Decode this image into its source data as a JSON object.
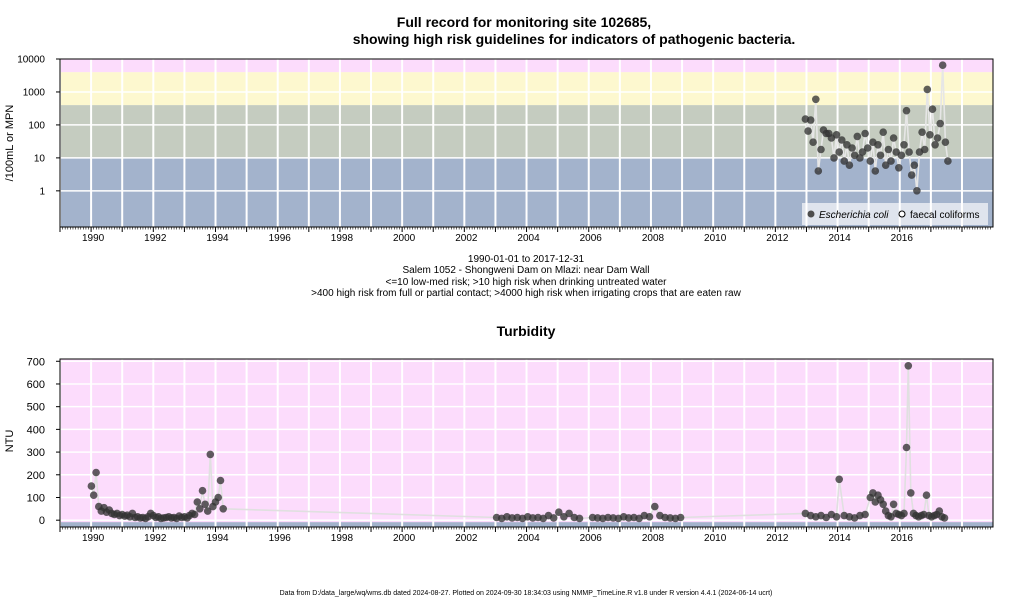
{
  "chart_data": [
    {
      "type": "scatter",
      "title_line1": "Full record for monitoring site 102685,",
      "title_line2": "showing high risk guidelines for indicators of pathogenic bacteria.",
      "ylabel": "/100mL or MPN",
      "y_scale": "log",
      "ylim": [
        0.08,
        10000
      ],
      "xlim": [
        "1989-01-01",
        "2018-12-31"
      ],
      "x_ticks": [
        "1990",
        "1992",
        "1994",
        "1996",
        "1998",
        "2000",
        "2002",
        "2004",
        "2006",
        "2008",
        "2010",
        "2012",
        "2014",
        "2016"
      ],
      "y_ticks": [
        "1",
        "10",
        "100",
        "1000",
        "10000"
      ],
      "grid": true,
      "bands": [
        {
          "from": 0.08,
          "to": 10,
          "color": "#a3b3cc"
        },
        {
          "from": 10,
          "to": 400,
          "color": "#c5ccc0"
        },
        {
          "from": 400,
          "to": 4000,
          "color": "#fdf8cf"
        },
        {
          "from": 4000,
          "to": 10000,
          "color": "#fcdcfc"
        }
      ],
      "caption": [
        "1990-01-01 to 2017-12-31",
        "Salem 1052 - Shongweni Dam on Mlazi: near Dam Wall",
        "<=10 low-med risk; >10 high risk when drinking untreated water",
        ">400 high risk from full or partial contact; >4000 high risk when irrigating crops that are eaten raw"
      ],
      "legend": {
        "position": "bottom-right",
        "items": [
          {
            "label": "Escherichia coli",
            "marker": "filled"
          },
          {
            "label": "faecal coliforms",
            "marker": "open"
          }
        ]
      },
      "series": [
        {
          "name": "Escherichia coli",
          "marker": "filled",
          "points": [
            [
              "2012-12-20",
              150
            ],
            [
              "2013-01-20",
              65
            ],
            [
              "2013-02-20",
              140
            ],
            [
              "2013-03-20",
              30
            ],
            [
              "2013-04-20",
              600
            ],
            [
              "2013-05-20",
              4
            ],
            [
              "2013-06-20",
              18
            ],
            [
              "2013-07-20",
              70
            ],
            [
              "2013-08-20",
              55
            ],
            [
              "2013-09-20",
              55
            ],
            [
              "2013-10-20",
              40
            ],
            [
              "2013-11-20",
              10
            ],
            [
              "2013-12-20",
              50
            ],
            [
              "2014-01-20",
              15
            ],
            [
              "2014-02-20",
              35
            ],
            [
              "2014-03-20",
              8
            ],
            [
              "2014-04-20",
              25
            ],
            [
              "2014-05-20",
              6
            ],
            [
              "2014-06-20",
              20
            ],
            [
              "2014-07-20",
              12
            ],
            [
              "2014-08-20",
              45
            ],
            [
              "2014-09-20",
              10
            ],
            [
              "2014-10-20",
              15
            ],
            [
              "2014-11-20",
              55
            ],
            [
              "2014-12-20",
              20
            ],
            [
              "2015-01-20",
              8
            ],
            [
              "2015-02-20",
              30
            ],
            [
              "2015-03-20",
              4
            ],
            [
              "2015-04-20",
              25
            ],
            [
              "2015-05-20",
              12
            ],
            [
              "2015-06-20",
              60
            ],
            [
              "2015-07-20",
              6
            ],
            [
              "2015-08-20",
              18
            ],
            [
              "2015-09-20",
              8
            ],
            [
              "2015-10-20",
              40
            ],
            [
              "2015-11-20",
              15
            ],
            [
              "2015-12-20",
              5
            ],
            [
              "2016-01-20",
              12
            ],
            [
              "2016-02-20",
              25
            ],
            [
              "2016-03-20",
              270
            ],
            [
              "2016-04-20",
              15
            ],
            [
              "2016-05-20",
              3
            ],
            [
              "2016-06-20",
              6
            ],
            [
              "2016-07-20",
              1
            ],
            [
              "2016-08-20",
              15
            ],
            [
              "2016-09-20",
              60
            ],
            [
              "2016-10-20",
              18
            ],
            [
              "2016-11-20",
              1200
            ],
            [
              "2016-12-20",
              50
            ],
            [
              "2017-01-20",
              300
            ],
            [
              "2017-02-20",
              25
            ],
            [
              "2017-03-20",
              40
            ],
            [
              "2017-04-20",
              110
            ],
            [
              "2017-05-20",
              6500
            ],
            [
              "2017-06-20",
              30
            ],
            [
              "2017-07-20",
              8
            ]
          ]
        }
      ]
    },
    {
      "type": "scatter",
      "title": "Turbidity",
      "ylabel": "NTU",
      "ylim": [
        -30,
        710
      ],
      "xlim": [
        "1989-01-01",
        "2018-12-31"
      ],
      "x_ticks": [
        "1990",
        "1992",
        "1994",
        "1996",
        "1998",
        "2000",
        "2002",
        "2004",
        "2006",
        "2008",
        "2010",
        "2012",
        "2014",
        "2016"
      ],
      "y_ticks": [
        "0",
        "100",
        "200",
        "300",
        "400",
        "500",
        "600",
        "700"
      ],
      "grid": true,
      "band_color": "#fcdcfc",
      "series": [
        {
          "name": "Turbidity",
          "marker": "filled",
          "points": [
            [
              "1990-01-05",
              150
            ],
            [
              "1990-02-01",
              110
            ],
            [
              "1990-03-01",
              210
            ],
            [
              "1990-04-01",
              60
            ],
            [
              "1990-05-01",
              40
            ],
            [
              "1990-06-01",
              55
            ],
            [
              "1990-07-01",
              35
            ],
            [
              "1990-08-01",
              45
            ],
            [
              "1990-09-01",
              30
            ],
            [
              "1990-10-01",
              25
            ],
            [
              "1990-11-01",
              30
            ],
            [
              "1990-12-01",
              20
            ],
            [
              "1991-01-01",
              25
            ],
            [
              "1991-02-01",
              18
            ],
            [
              "1991-03-01",
              22
            ],
            [
              "1991-04-01",
              15
            ],
            [
              "1991-05-01",
              30
            ],
            [
              "1991-06-01",
              12
            ],
            [
              "1991-07-01",
              15
            ],
            [
              "1991-08-01",
              10
            ],
            [
              "1991-09-01",
              12
            ],
            [
              "1991-10-01",
              8
            ],
            [
              "1991-11-01",
              15
            ],
            [
              "1991-12-01",
              30
            ],
            [
              "1992-01-01",
              20
            ],
            [
              "1992-02-01",
              12
            ],
            [
              "1992-03-01",
              15
            ],
            [
              "1992-04-01",
              8
            ],
            [
              "1992-05-01",
              10
            ],
            [
              "1992-06-01",
              12
            ],
            [
              "1992-07-01",
              15
            ],
            [
              "1992-08-01",
              10
            ],
            [
              "1992-09-01",
              12
            ],
            [
              "1992-10-01",
              8
            ],
            [
              "1992-11-01",
              18
            ],
            [
              "1992-12-01",
              12
            ],
            [
              "1993-01-01",
              15
            ],
            [
              "1993-02-01",
              10
            ],
            [
              "1993-03-01",
              20
            ],
            [
              "1993-04-01",
              30
            ],
            [
              "1993-05-01",
              25
            ],
            [
              "1993-06-01",
              80
            ],
            [
              "1993-07-01",
              50
            ],
            [
              "1993-08-01",
              130
            ],
            [
              "1993-09-01",
              70
            ],
            [
              "1993-10-01",
              40
            ],
            [
              "1993-11-01",
              290
            ],
            [
              "1993-12-01",
              60
            ],
            [
              "1994-01-01",
              80
            ],
            [
              "1994-02-01",
              100
            ],
            [
              "1994-03-01",
              175
            ],
            [
              "1994-04-01",
              50
            ],
            [
              "2003-01-15",
              12
            ],
            [
              "2003-03-15",
              8
            ],
            [
              "2003-05-15",
              15
            ],
            [
              "2003-07-15",
              10
            ],
            [
              "2003-09-15",
              12
            ],
            [
              "2003-11-15",
              8
            ],
            [
              "2004-01-15",
              15
            ],
            [
              "2004-03-15",
              10
            ],
            [
              "2004-05-15",
              12
            ],
            [
              "2004-07-15",
              8
            ],
            [
              "2004-09-15",
              20
            ],
            [
              "2004-11-15",
              10
            ],
            [
              "2005-01-15",
              35
            ],
            [
              "2005-03-15",
              15
            ],
            [
              "2005-05-15",
              30
            ],
            [
              "2005-07-15",
              12
            ],
            [
              "2005-09-15",
              8
            ],
            [
              "2006-02-15",
              12
            ],
            [
              "2006-04-15",
              10
            ],
            [
              "2006-06-15",
              8
            ],
            [
              "2006-08-15",
              12
            ],
            [
              "2006-10-15",
              10
            ],
            [
              "2006-12-15",
              8
            ],
            [
              "2007-02-15",
              15
            ],
            [
              "2007-04-15",
              10
            ],
            [
              "2007-06-15",
              12
            ],
            [
              "2007-08-15",
              8
            ],
            [
              "2007-10-15",
              20
            ],
            [
              "2007-12-15",
              15
            ],
            [
              "2008-02-15",
              60
            ],
            [
              "2008-04-15",
              20
            ],
            [
              "2008-06-15",
              12
            ],
            [
              "2008-08-15",
              10
            ],
            [
              "2008-10-15",
              8
            ],
            [
              "2008-12-15",
              12
            ],
            [
              "2012-12-20",
              30
            ],
            [
              "2013-02-20",
              20
            ],
            [
              "2013-04-20",
              15
            ],
            [
              "2013-06-20",
              20
            ],
            [
              "2013-08-20",
              12
            ],
            [
              "2013-10-20",
              25
            ],
            [
              "2013-12-20",
              15
            ],
            [
              "2014-01-20",
              180
            ],
            [
              "2014-03-20",
              20
            ],
            [
              "2014-05-20",
              15
            ],
            [
              "2014-07-20",
              10
            ],
            [
              "2014-09-20",
              20
            ],
            [
              "2014-11-20",
              25
            ],
            [
              "2015-01-20",
              100
            ],
            [
              "2015-02-20",
              120
            ],
            [
              "2015-03-20",
              80
            ],
            [
              "2015-04-20",
              110
            ],
            [
              "2015-05-20",
              90
            ],
            [
              "2015-06-20",
              70
            ],
            [
              "2015-07-20",
              40
            ],
            [
              "2015-08-20",
              20
            ],
            [
              "2015-09-20",
              15
            ],
            [
              "2015-10-20",
              70
            ],
            [
              "2015-11-20",
              30
            ],
            [
              "2015-12-20",
              25
            ],
            [
              "2016-01-20",
              20
            ],
            [
              "2016-02-20",
              30
            ],
            [
              "2016-03-20",
              320
            ],
            [
              "2016-04-10",
              680
            ],
            [
              "2016-05-10",
              120
            ],
            [
              "2016-06-10",
              30
            ],
            [
              "2016-07-10",
              20
            ],
            [
              "2016-08-10",
              15
            ],
            [
              "2016-09-10",
              20
            ],
            [
              "2016-10-10",
              25
            ],
            [
              "2016-11-10",
              110
            ],
            [
              "2016-12-10",
              20
            ],
            [
              "2017-01-10",
              15
            ],
            [
              "2017-02-10",
              20
            ],
            [
              "2017-03-10",
              25
            ],
            [
              "2017-04-10",
              40
            ],
            [
              "2017-05-10",
              15
            ],
            [
              "2017-06-10",
              10
            ]
          ]
        }
      ]
    }
  ],
  "footer": "Data from D:/data_large/wq/wms.db dated 2024-08-27. Plotted on 2024-09-30 18:34:03 using NMMP_TimeLine.R v1.8 under R version 4.4.1 (2024-06-14 ucrt)",
  "colors": {
    "point": "#4d4d4d",
    "grid": "#ffffff",
    "axis": "#000000"
  }
}
